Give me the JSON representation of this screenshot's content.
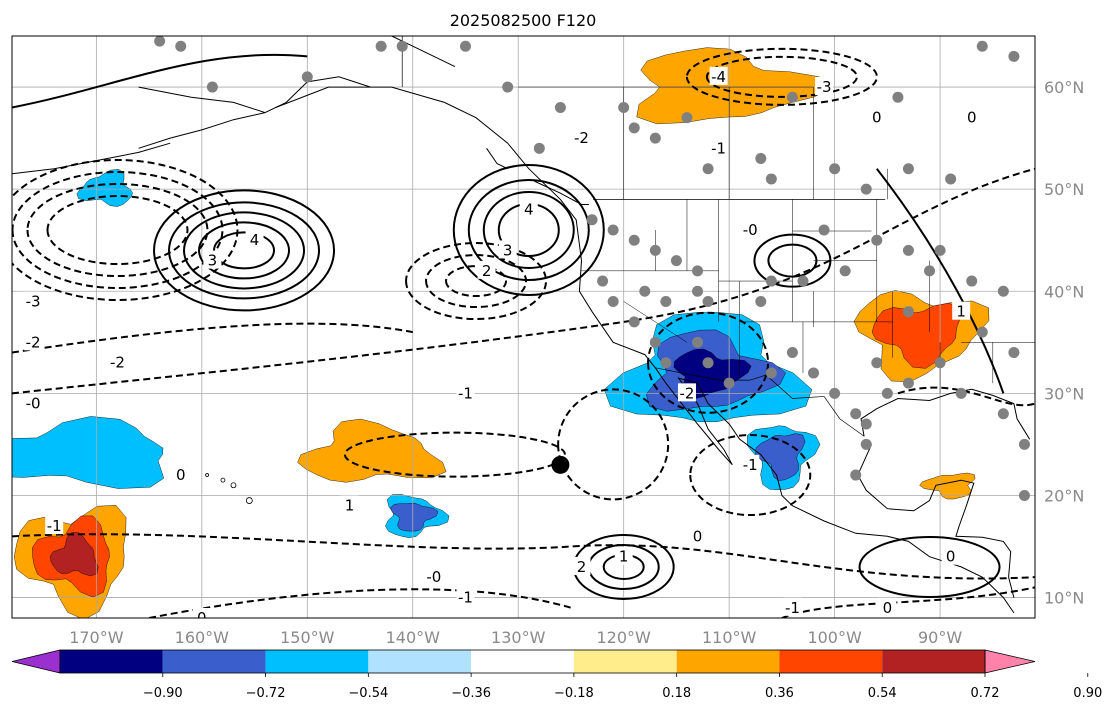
{
  "chart_data": {
    "type": "filled-contour-map",
    "title": "2025082500 F120",
    "map_extent": {
      "lon_min": -178,
      "lon_max": -81,
      "lat_min": 8,
      "lat_max": 65
    },
    "grid_lons": [
      -170,
      -160,
      -150,
      -140,
      -130,
      -120,
      -110,
      -100,
      -90
    ],
    "grid_lats": [
      10,
      20,
      30,
      40,
      50,
      60
    ],
    "x_tick_labels": [
      "170°W",
      "160°W",
      "150°W",
      "140°W",
      "130°W",
      "120°W",
      "110°W",
      "100°W",
      "90°W"
    ],
    "y_tick_labels": [
      "10°N",
      "20°N",
      "30°N",
      "40°N",
      "50°N",
      "60°N"
    ],
    "colorbar": {
      "levels": [
        -0.9,
        -0.72,
        -0.54,
        -0.36,
        -0.18,
        0.18,
        0.36,
        0.54,
        0.72,
        0.9
      ],
      "tick_labels": [
        "−0.90",
        "−0.72",
        "−0.54",
        "−0.36",
        "−0.18",
        "0.18",
        "0.36",
        "0.54",
        "0.72",
        "0.90"
      ],
      "colors": [
        "#9b30d0",
        "#000080",
        "#3a5fcd",
        "#00bfff",
        "#b0e2ff",
        "#ffffff",
        "#ffec8b",
        "#ffa500",
        "#ff4500",
        "#b22222",
        "#ff82ab"
      ],
      "extend": "both"
    },
    "shaded_regions": [
      {
        "name": "southwest-us-negative",
        "center": [
          -112,
          32
        ],
        "level": -0.72
      },
      {
        "name": "alaska-high-positive",
        "center": [
          -111,
          60
        ],
        "level": 0.36
      },
      {
        "name": "texas-louisiana-positive",
        "center": [
          -92,
          36
        ],
        "level": 0.54
      },
      {
        "name": "west-pacific-positive",
        "center": [
          -172,
          14
        ],
        "level": 0.72
      },
      {
        "name": "subtropical-pacific-negative",
        "center": [
          -172,
          24
        ],
        "level": -0.36
      },
      {
        "name": "central-pacific-positive",
        "center": [
          -144,
          24
        ],
        "level": 0.36
      },
      {
        "name": "hawaii-west-negative",
        "center": [
          -140,
          18
        ],
        "level": -0.54
      },
      {
        "name": "baja-negative",
        "center": [
          -105,
          24
        ],
        "level": -0.54
      },
      {
        "name": "gulf-of-mexico-positive",
        "center": [
          -89,
          21
        ],
        "level": 0.36
      },
      {
        "name": "aleutian-negative",
        "center": [
          -169,
          50
        ],
        "level": -0.36
      }
    ],
    "contour_labels": [
      "-1",
      "-2",
      "-3",
      "-4",
      "0",
      "1",
      "2",
      "3",
      "4"
    ],
    "labeled_contours": [
      {
        "text": "3",
        "lon": -159,
        "lat": 43
      },
      {
        "text": "4",
        "lon": -155,
        "lat": 45
      },
      {
        "text": "4",
        "lon": -129,
        "lat": 48
      },
      {
        "text": "3",
        "lon": -131,
        "lat": 44
      },
      {
        "text": "2",
        "lon": -133,
        "lat": 42
      },
      {
        "text": "-3",
        "lon": -176,
        "lat": 39
      },
      {
        "text": "-2",
        "lon": -176,
        "lat": 35
      },
      {
        "text": "-2",
        "lon": -168,
        "lat": 33
      },
      {
        "text": "-0",
        "lon": -176,
        "lat": 29
      },
      {
        "text": "0",
        "lon": -162,
        "lat": 22
      },
      {
        "text": "-1",
        "lon": -174,
        "lat": 17
      },
      {
        "text": "1",
        "lon": -146,
        "lat": 19
      },
      {
        "text": "-1",
        "lon": -135,
        "lat": 30
      },
      {
        "text": "-2",
        "lon": -124,
        "lat": 55
      },
      {
        "text": "-0",
        "lon": -108,
        "lat": 46
      },
      {
        "text": "-2",
        "lon": -114,
        "lat": 30
      },
      {
        "text": "-4",
        "lon": -111,
        "lat": 61
      },
      {
        "text": "-3",
        "lon": -101,
        "lat": 60
      },
      {
        "text": "0",
        "lon": -96,
        "lat": 57
      },
      {
        "text": "0",
        "lon": -87,
        "lat": 57
      },
      {
        "text": "1",
        "lon": -88,
        "lat": 38
      },
      {
        "text": "-1",
        "lon": -111,
        "lat": 54
      },
      {
        "text": "-1",
        "lon": -108,
        "lat": 23
      },
      {
        "text": "1",
        "lon": -120,
        "lat": 14
      },
      {
        "text": "2",
        "lon": -124,
        "lat": 13
      },
      {
        "text": "0",
        "lon": -113,
        "lat": 16
      },
      {
        "text": "-0",
        "lon": -138,
        "lat": 12
      },
      {
        "text": "-1",
        "lon": -135,
        "lat": 10
      },
      {
        "text": "0",
        "lon": -89,
        "lat": 14
      },
      {
        "text": "-1",
        "lon": -104,
        "lat": 9
      },
      {
        "text": "0",
        "lon": -95,
        "lat": 9
      },
      {
        "text": "0",
        "lon": -160,
        "lat": 8
      }
    ],
    "marked_point": {
      "lon": -126,
      "lat": 23
    }
  }
}
